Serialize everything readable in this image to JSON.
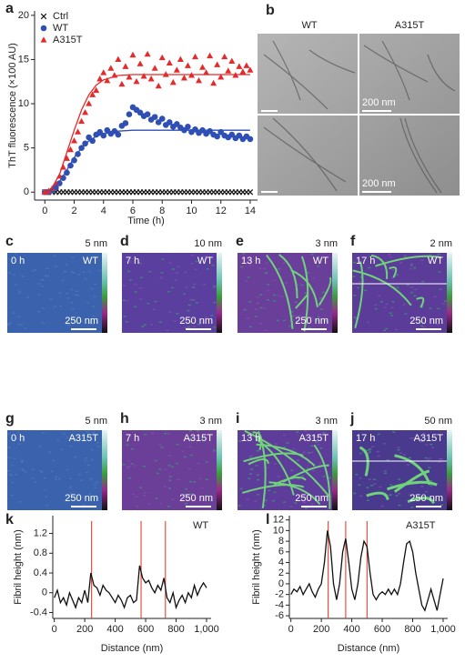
{
  "chart_data": [
    {
      "type": "scatter",
      "panel_label": "a",
      "y_label": "ThT fluorescence (×100 AU)",
      "x_label": "Time (h)",
      "xlim": [
        -0.7,
        14.5
      ],
      "ylim": [
        -0.9,
        20.5
      ],
      "xticks": [
        0,
        2,
        4,
        6,
        8,
        10,
        12,
        14
      ],
      "yticks": [
        0,
        5,
        10,
        15,
        20
      ],
      "legend": "upper left",
      "x": [
        0,
        0.25,
        0.5,
        0.75,
        1,
        1.25,
        1.5,
        1.75,
        2,
        2.25,
        2.5,
        2.75,
        3,
        3.25,
        3.5,
        3.75,
        4,
        4.25,
        4.5,
        4.75,
        5,
        5.25,
        5.5,
        5.75,
        6,
        6.25,
        6.5,
        6.75,
        7,
        7.25,
        7.5,
        7.75,
        8,
        8.25,
        8.5,
        8.75,
        9,
        9.25,
        9.5,
        9.75,
        10,
        10.25,
        10.5,
        10.75,
        11,
        11.25,
        11.5,
        11.75,
        12,
        12.25,
        12.5,
        12.75,
        13,
        13.25,
        13.5,
        13.75,
        14
      ],
      "series": [
        {
          "name": "Ctrl",
          "color": "#111111",
          "marker": "x",
          "values": [
            0,
            0,
            0,
            0,
            0,
            0,
            0,
            0,
            0,
            0,
            0,
            0,
            0,
            0,
            0,
            0,
            0,
            0,
            0,
            0,
            0,
            0,
            0,
            0,
            0,
            0,
            0,
            0,
            0,
            0,
            0,
            0,
            0,
            0,
            0,
            0,
            0,
            0,
            0,
            0,
            0,
            0,
            0,
            0,
            0,
            0,
            0,
            0,
            0,
            0,
            0,
            0,
            0,
            0,
            0,
            0,
            0
          ]
        },
        {
          "name": "WT",
          "color": "#2f4fb5",
          "marker": "circle",
          "values": [
            0,
            0,
            0.2,
            0.5,
            1.0,
            1.6,
            2.2,
            3.0,
            3.6,
            4.3,
            5.0,
            5.5,
            6.2,
            5.8,
            6.5,
            6.8,
            6.4,
            7.0,
            6.6,
            6.9,
            6.5,
            7.5,
            7.8,
            8.8,
            9.6,
            9.3,
            9.0,
            8.6,
            8.8,
            8.2,
            8.5,
            7.9,
            8.3,
            7.6,
            7.9,
            7.4,
            7.7,
            7.3,
            7.0,
            7.4,
            6.8,
            7.1,
            6.7,
            7.0,
            6.6,
            6.9,
            6.5,
            6.3,
            6.8,
            6.4,
            6.2,
            6.5,
            6.1,
            6.4,
            6.0,
            6.3,
            6.0
          ]
        },
        {
          "name": "A315T",
          "color": "#e32b2b",
          "marker": "triangle",
          "values": [
            0,
            0.1,
            0.4,
            1.0,
            1.8,
            2.8,
            3.8,
            4.8,
            5.8,
            6.8,
            8.0,
            9.0,
            10.0,
            11.0,
            11.5,
            12.8,
            13.5,
            12.6,
            14.0,
            13.2,
            15.0,
            12.2,
            14.2,
            13.0,
            15.5,
            12.5,
            14.5,
            13.1,
            15.6,
            12.8,
            14.0,
            12.0,
            15.2,
            13.3,
            14.6,
            12.4,
            13.8,
            15.0,
            12.9,
            14.3,
            13.2,
            15.3,
            12.6,
            14.1,
            13.5,
            15.4,
            12.3,
            14.4,
            13.0,
            15.3,
            13.7,
            14.8,
            13.2,
            14.2,
            13.6,
            14.3,
            13.8
          ]
        }
      ],
      "fits": [
        {
          "color": "#2f4fb5",
          "x": [
            0,
            0.5,
            1,
            1.5,
            2,
            2.5,
            3,
            3.5,
            4,
            5,
            6,
            8,
            10,
            12,
            14
          ],
          "values": [
            0,
            0.3,
            1.2,
            2.5,
            3.9,
            5.0,
            5.8,
            6.3,
            6.6,
            6.9,
            7.0,
            7.0,
            7.0,
            7.0,
            7.0
          ]
        },
        {
          "color": "#e32b2b",
          "x": [
            0,
            0.5,
            1,
            1.5,
            2,
            2.5,
            3,
            3.5,
            4,
            5,
            6,
            8,
            10,
            12,
            14
          ],
          "values": [
            0,
            0.5,
            2,
            4.5,
            7,
            9.3,
            11,
            12.1,
            12.7,
            13.2,
            13.3,
            13.3,
            13.3,
            13.3,
            13.3
          ]
        }
      ]
    },
    {
      "type": "line",
      "panel_label": "k",
      "annotation": "WT",
      "y_label": "Fibril height (nm)",
      "x_label": "Distance (nm)",
      "xlim": [
        -10,
        1030
      ],
      "ylim": [
        -0.52,
        1.56
      ],
      "xticks": [
        0,
        200,
        400,
        600,
        800,
        {
          "value": 1000,
          "label": "1,000"
        }
      ],
      "yticks": [
        -0.4,
        0,
        0.4,
        0.8,
        1.2
      ],
      "vlines": [
        245,
        570,
        730
      ],
      "vline_color": "#e0301e",
      "series": [
        {
          "color": "#111111",
          "x": [
            0,
            20,
            40,
            60,
            80,
            100,
            120,
            140,
            160,
            180,
            200,
            220,
            240,
            260,
            280,
            300,
            320,
            340,
            360,
            380,
            400,
            420,
            440,
            460,
            480,
            500,
            520,
            540,
            560,
            580,
            600,
            620,
            640,
            660,
            680,
            700,
            720,
            740,
            760,
            780,
            800,
            820,
            840,
            860,
            880,
            900,
            920,
            940,
            960,
            980,
            1000
          ],
          "values": [
            -0.1,
            0.05,
            -0.2,
            -0.1,
            -0.25,
            0.0,
            -0.15,
            -0.3,
            -0.1,
            -0.2,
            0.05,
            -0.2,
            0.4,
            0.15,
            0.1,
            -0.05,
            0.15,
            0.05,
            0.0,
            -0.1,
            -0.2,
            -0.05,
            -0.15,
            -0.3,
            -0.1,
            -0.05,
            -0.2,
            -0.15,
            0.55,
            0.3,
            0.2,
            0.25,
            0.1,
            0.0,
            0.15,
            0.05,
            0.3,
            -0.1,
            -0.2,
            0.0,
            -0.3,
            -0.15,
            -0.05,
            -0.2,
            0.0,
            -0.1,
            0.15,
            -0.05,
            0.1,
            0.2,
            0.1
          ]
        }
      ]
    },
    {
      "type": "line",
      "panel_label": "l",
      "annotation": "A315T",
      "y_label": "Fibril height (nm)",
      "x_label": "Distance (nm)",
      "xlim": [
        -10,
        1030
      ],
      "ylim": [
        -6.5,
        12.8
      ],
      "xticks": [
        0,
        200,
        400,
        600,
        800,
        {
          "value": 1000,
          "label": "1,000"
        }
      ],
      "yticks": [
        -6,
        -4,
        -2,
        0,
        2,
        4,
        6,
        8,
        10,
        12
      ],
      "vlines": [
        245,
        360,
        500
      ],
      "vline_color": "#e0301e",
      "series": [
        {
          "color": "#111111",
          "x": [
            0,
            20,
            40,
            60,
            80,
            100,
            120,
            140,
            160,
            180,
            200,
            220,
            240,
            260,
            280,
            300,
            320,
            340,
            360,
            380,
            400,
            420,
            440,
            460,
            480,
            500,
            520,
            540,
            560,
            580,
            600,
            620,
            640,
            660,
            680,
            700,
            720,
            740,
            760,
            780,
            800,
            820,
            840,
            860,
            880,
            900,
            920,
            940,
            960,
            980,
            1000
          ],
          "values": [
            -2,
            -1,
            -1.5,
            -0.5,
            -2,
            -1,
            0,
            -1.5,
            -2.5,
            -1,
            0,
            4,
            10,
            7,
            0,
            -3,
            0,
            6,
            8.5,
            4,
            -1,
            -3,
            0,
            5,
            8,
            7,
            2,
            -2,
            -3,
            -2,
            -1.5,
            -2,
            -1,
            -2,
            -1,
            -2,
            0,
            4,
            7.5,
            8,
            6,
            2,
            -1,
            -4,
            -5,
            -3,
            -1,
            -3,
            -5,
            -2,
            1
          ]
        }
      ]
    }
  ],
  "micrographs": {
    "label": "b",
    "columns": [
      "WT",
      "A315T"
    ],
    "scale_bars": [
      "200 nm",
      "200 nm"
    ]
  },
  "afm_panels": [
    {
      "label": "c",
      "height_scale": "5 nm",
      "time": "0 h",
      "sample": "WT",
      "scale_bar": "250 nm"
    },
    {
      "label": "d",
      "height_scale": "10 nm",
      "time": "7 h",
      "sample": "WT",
      "scale_bar": "250 nm"
    },
    {
      "label": "e",
      "height_scale": "3 nm",
      "time": "13 h",
      "sample": "WT",
      "scale_bar": "250 nm"
    },
    {
      "label": "f",
      "height_scale": "2 nm",
      "time": "17 h",
      "sample": "WT",
      "scale_bar": "250 nm"
    },
    {
      "label": "g",
      "height_scale": "5 nm",
      "time": "0 h",
      "sample": "A315T",
      "scale_bar": "250 nm"
    },
    {
      "label": "h",
      "height_scale": "3 nm",
      "time": "7 h",
      "sample": "A315T",
      "scale_bar": "250 nm"
    },
    {
      "label": "i",
      "height_scale": "3 nm",
      "time": "13 h",
      "sample": "A315T",
      "scale_bar": "250 nm"
    },
    {
      "label": "j",
      "height_scale": "50 nm",
      "time": "17 h",
      "sample": "A315T",
      "scale_bar": "250 nm"
    }
  ]
}
